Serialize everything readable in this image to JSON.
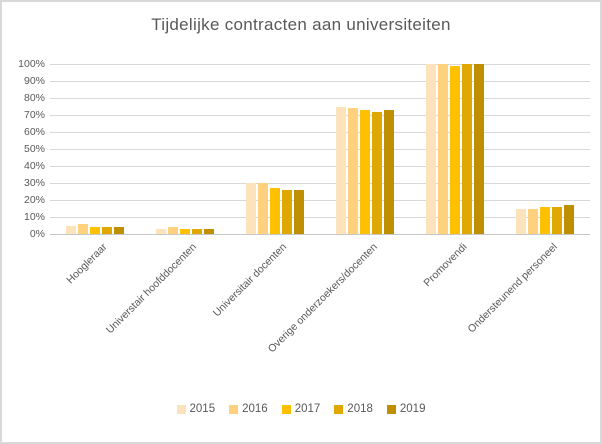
{
  "chart": {
    "background": "#FFFFFF",
    "border_color": "#D9D9D9",
    "gridline_color": "#D9D9D9",
    "axis_line_color": "#C6C6C6",
    "text_color": "#595959"
  },
  "chart_data": {
    "type": "bar",
    "title": "Tijdelijke contracten aan universiteiten",
    "categories": [
      "Hoogleraar",
      "Universtair hoofddocenten",
      "Universitair docenten",
      "Overige onderzoekers/docenten",
      "Promovendi",
      "Ondersteunend personeel"
    ],
    "series": [
      {
        "name": "2015",
        "color": "#FCE3BC",
        "values": [
          5,
          3,
          30,
          75,
          100,
          15
        ]
      },
      {
        "name": "2016",
        "color": "#FFD17E",
        "values": [
          6,
          4,
          30,
          74,
          100,
          15
        ]
      },
      {
        "name": "2017",
        "color": "#FFC000",
        "values": [
          4,
          3,
          27,
          73,
          99,
          16
        ]
      },
      {
        "name": "2018",
        "color": "#DFA800",
        "values": [
          4,
          3,
          26,
          72,
          100,
          16
        ]
      },
      {
        "name": "2019",
        "color": "#BF8F00",
        "values": [
          4,
          3,
          26,
          73,
          100,
          17
        ]
      }
    ],
    "ylim": [
      0,
      100
    ],
    "ytick_step": 10,
    "ytick_labels": [
      "0%",
      "10%",
      "20%",
      "30%",
      "40%",
      "50%",
      "60%",
      "70%",
      "80%",
      "90%",
      "100%"
    ],
    "grid": true,
    "legend_position": "bottom",
    "xlabel": "",
    "ylabel": ""
  }
}
